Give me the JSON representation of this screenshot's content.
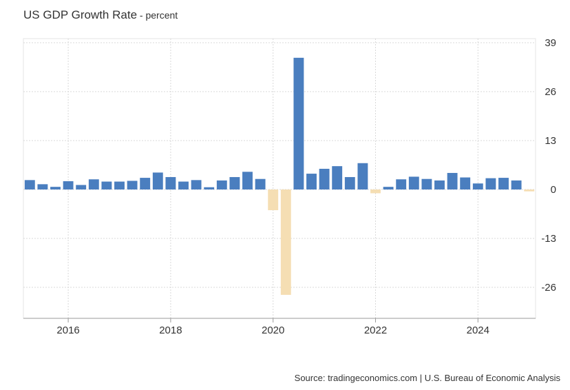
{
  "header": {
    "title": "US GDP Growth Rate",
    "subtitle": " - percent"
  },
  "footer": {
    "source": "Source: tradingeconomics.com | U.S. Bureau of Economic Analysis"
  },
  "colors": {
    "positive": "#4a7ebf",
    "negative": "#f5deb3",
    "grid": "#d8d8d8",
    "axis": "#999999",
    "frame": "#e6e6e6"
  },
  "chart_data": {
    "type": "bar",
    "title": "US GDP Growth Rate",
    "subtitle": "percent",
    "xlabel": "",
    "ylabel": "",
    "ylim": [
      -35,
      39
    ],
    "y_ticks": [
      39,
      26,
      13,
      0,
      -13,
      -26
    ],
    "x_tick_labels": [
      "2016",
      "2018",
      "2020",
      "2022",
      "2024"
    ],
    "x_tick_positions_quarter_index": [
      3,
      11,
      19,
      27,
      35
    ],
    "grid": true,
    "legend": "none",
    "categories": [
      "2015 Q2",
      "2015 Q3",
      "2015 Q4",
      "2016 Q1",
      "2016 Q2",
      "2016 Q3",
      "2016 Q4",
      "2017 Q1",
      "2017 Q2",
      "2017 Q3",
      "2017 Q4",
      "2018 Q1",
      "2018 Q2",
      "2018 Q3",
      "2018 Q4",
      "2019 Q1",
      "2019 Q2",
      "2019 Q3",
      "2019 Q4",
      "2020 Q1",
      "2020 Q2",
      "2020 Q3",
      "2020 Q4",
      "2021 Q1",
      "2021 Q2",
      "2021 Q3",
      "2021 Q4",
      "2022 Q1",
      "2022 Q2",
      "2022 Q3",
      "2022 Q4",
      "2023 Q1",
      "2023 Q2",
      "2023 Q3",
      "2023 Q4",
      "2024 Q1",
      "2024 Q2",
      "2024 Q3",
      "2024 Q4",
      "2025 Q1"
    ],
    "values": [
      2.5,
      1.4,
      0.7,
      2.2,
      1.2,
      2.7,
      2.1,
      2.1,
      2.3,
      3.1,
      4.5,
      3.3,
      2.1,
      2.5,
      0.6,
      2.4,
      3.3,
      4.7,
      2.8,
      -5.5,
      -28.0,
      35.0,
      4.2,
      5.5,
      6.2,
      3.3,
      7.0,
      -1.0,
      0.7,
      2.7,
      3.4,
      2.8,
      2.4,
      4.4,
      3.2,
      1.6,
      3.0,
      3.1,
      2.4,
      -0.5
    ]
  }
}
